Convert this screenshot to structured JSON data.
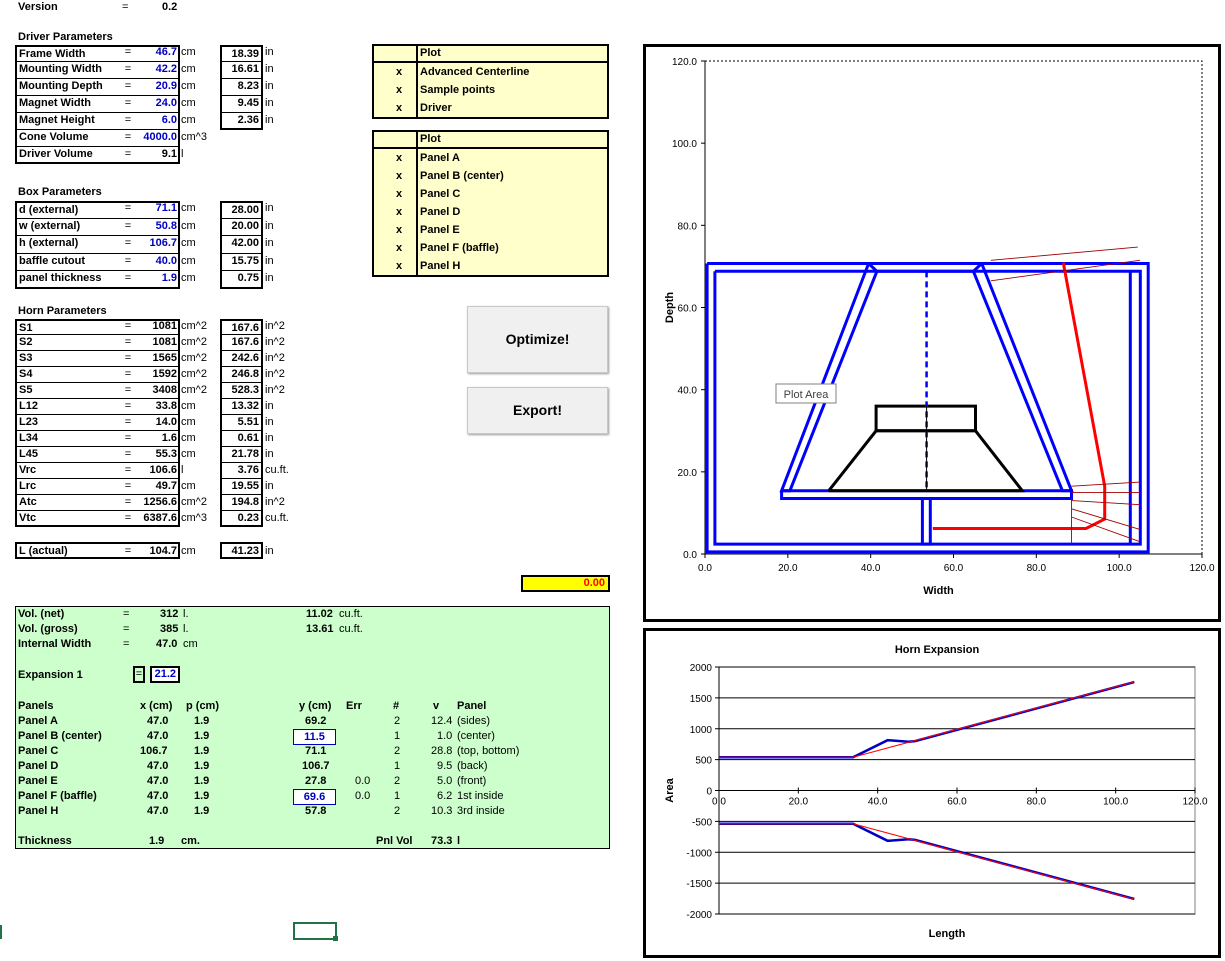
{
  "version": {
    "label": "Version",
    "eq": "=",
    "value": "0.2"
  },
  "driver": {
    "title": "Driver Parameters",
    "rows": [
      {
        "name": "Frame Width",
        "value": "46.7",
        "unit": "cm",
        "conv": "18.39",
        "cunit": "in",
        "input": true
      },
      {
        "name": "Mounting Width",
        "value": "42.2",
        "unit": "cm",
        "conv": "16.61",
        "cunit": "in",
        "input": true
      },
      {
        "name": "Mounting Depth",
        "value": "20.9",
        "unit": "cm",
        "conv": "8.23",
        "cunit": "in",
        "input": true
      },
      {
        "name": "Magnet Width",
        "value": "24.0",
        "unit": "cm",
        "conv": "9.45",
        "cunit": "in",
        "input": true
      },
      {
        "name": "Magnet Height",
        "value": "6.0",
        "unit": "cm",
        "conv": "2.36",
        "cunit": "in",
        "input": true
      },
      {
        "name": "Cone Volume",
        "value": "4000.0",
        "unit": "cm^3",
        "conv": "",
        "cunit": "",
        "input": true
      },
      {
        "name": "Driver Volume",
        "value": "9.1",
        "unit": "l",
        "conv": "",
        "cunit": "",
        "input": false
      }
    ]
  },
  "box": {
    "title": "Box Parameters",
    "rows": [
      {
        "name": "d (external)",
        "value": "71.1",
        "unit": "cm",
        "conv": "28.00",
        "cunit": "in",
        "input": true
      },
      {
        "name": "w (external)",
        "value": "50.8",
        "unit": "cm",
        "conv": "20.00",
        "cunit": "in",
        "input": true
      },
      {
        "name": "h (external)",
        "value": "106.7",
        "unit": "cm",
        "conv": "42.00",
        "cunit": "in",
        "input": true
      },
      {
        "name": "baffle cutout",
        "value": "40.0",
        "unit": "cm",
        "conv": "15.75",
        "cunit": "in",
        "input": true
      },
      {
        "name": "panel thickness",
        "value": "1.9",
        "unit": "cm",
        "conv": "0.75",
        "cunit": "in",
        "input": true
      }
    ]
  },
  "horn": {
    "title": "Horn Parameters",
    "rows": [
      {
        "name": "S1",
        "value": "1081",
        "unit": "cm^2",
        "conv": "167.6",
        "cunit": "in^2",
        "input": false
      },
      {
        "name": "S2",
        "value": "1081",
        "unit": "cm^2",
        "conv": "167.6",
        "cunit": "in^2",
        "input": false
      },
      {
        "name": "S3",
        "value": "1565",
        "unit": "cm^2",
        "conv": "242.6",
        "cunit": "in^2",
        "input": false
      },
      {
        "name": "S4",
        "value": "1592",
        "unit": "cm^2",
        "conv": "246.8",
        "cunit": "in^2",
        "input": false
      },
      {
        "name": "S5",
        "value": "3408",
        "unit": "cm^2",
        "conv": "528.3",
        "cunit": "in^2",
        "input": false
      },
      {
        "name": "L12",
        "value": "33.8",
        "unit": "cm",
        "conv": "13.32",
        "cunit": "in",
        "input": false
      },
      {
        "name": "L23",
        "value": "14.0",
        "unit": "cm",
        "conv": "5.51",
        "cunit": "in",
        "input": false
      },
      {
        "name": "L34",
        "value": "1.6",
        "unit": "cm",
        "conv": "0.61",
        "cunit": "in",
        "input": false
      },
      {
        "name": "L45",
        "value": "55.3",
        "unit": "cm",
        "conv": "21.78",
        "cunit": "in",
        "input": false
      },
      {
        "name": "Vrc",
        "value": "106.6",
        "unit": "l",
        "conv": "3.76",
        "cunit": "cu.ft.",
        "input": false
      },
      {
        "name": "Lrc",
        "value": "49.7",
        "unit": "cm",
        "conv": "19.55",
        "cunit": "in",
        "input": false
      },
      {
        "name": "Atc",
        "value": "1256.6",
        "unit": "cm^2",
        "conv": "194.8",
        "cunit": "in^2",
        "input": false
      },
      {
        "name": "Vtc",
        "value": "6387.6",
        "unit": "cm^3",
        "conv": "0.23",
        "cunit": "cu.ft.",
        "input": false
      }
    ],
    "actual": {
      "name": "L (actual)",
      "value": "104.7",
      "unit": "cm",
      "conv": "41.23",
      "cunit": "in"
    }
  },
  "eq": "=",
  "yellow_cell": "0.00",
  "plot1": {
    "header": "Plot",
    "items": [
      {
        "x": "x",
        "label": "Advanced Centerline"
      },
      {
        "x": "x",
        "label": "Sample points"
      },
      {
        "x": "x",
        "label": "Driver"
      }
    ]
  },
  "plot2": {
    "header": "Plot",
    "items": [
      {
        "x": "x",
        "label": "Panel A"
      },
      {
        "x": "x",
        "label": "Panel B (center)"
      },
      {
        "x": "x",
        "label": "Panel C"
      },
      {
        "x": "x",
        "label": "Panel D"
      },
      {
        "x": "x",
        "label": "Panel E"
      },
      {
        "x": "x",
        "label": "Panel F (baffle)"
      },
      {
        "x": "x",
        "label": "Panel H"
      }
    ]
  },
  "buttons": {
    "optimize": "Optimize!",
    "export": "Export!"
  },
  "summary": {
    "vol_net": {
      "label": "Vol. (net)",
      "v1": "312",
      "u1": "l.",
      "v2": "11.02",
      "u2": "cu.ft."
    },
    "vol_gross": {
      "label": "Vol. (gross)",
      "v1": "385",
      "u1": "l.",
      "v2": "13.61",
      "u2": "cu.ft."
    },
    "internal_width": {
      "label": "Internal Width",
      "v1": "47.0",
      "u1": "cm"
    },
    "expansion": {
      "label": "Expansion 1",
      "value": "21.2"
    },
    "headers": {
      "panels": "Panels",
      "x": "x (cm)",
      "p": "p (cm)",
      "y": "y (cm)",
      "err": "Err",
      "n": "#",
      "v": "v",
      "panel": "Panel"
    },
    "panels": [
      {
        "name": "Panel A",
        "x": "47.0",
        "p": "1.9",
        "y": "69.2",
        "err": "",
        "n": "2",
        "v": "12.4",
        "desc": "(sides)",
        "boxed": false
      },
      {
        "name": "Panel B (center)",
        "x": "47.0",
        "p": "1.9",
        "y": "11.5",
        "err": "",
        "n": "1",
        "v": "1.0",
        "desc": "(center)",
        "boxed": true
      },
      {
        "name": "Panel C",
        "x": "106.7",
        "p": "1.9",
        "y": "71.1",
        "err": "",
        "n": "2",
        "v": "28.8",
        "desc": "(top, bottom)",
        "boxed": false
      },
      {
        "name": "Panel D",
        "x": "47.0",
        "p": "1.9",
        "y": "106.7",
        "err": "",
        "n": "1",
        "v": "9.5",
        "desc": "(back)",
        "boxed": false
      },
      {
        "name": "Panel E",
        "x": "47.0",
        "p": "1.9",
        "y": "27.8",
        "err": "0.0",
        "n": "2",
        "v": "5.0",
        "desc": "(front)",
        "boxed": false
      },
      {
        "name": "Panel F (baffle)",
        "x": "47.0",
        "p": "1.9",
        "y": "69.6",
        "err": "0.0",
        "n": "1",
        "v": "6.2",
        "desc": "1st inside",
        "boxed": true
      },
      {
        "name": "Panel H",
        "x": "47.0",
        "p": "1.9",
        "y": "57.8",
        "err": "",
        "n": "2",
        "v": "10.3",
        "desc": "3rd inside",
        "boxed": false
      }
    ],
    "thickness": {
      "label": "Thickness",
      "value": "1.9",
      "unit": "cm.",
      "pnl_label": "Pnl Vol",
      "pnl_value": "73.3",
      "pnl_unit": "l"
    }
  },
  "chart_data": [
    {
      "type": "scatter",
      "title": "",
      "xlabel": "Width",
      "ylabel": "Depth",
      "xlim": [
        0,
        120
      ],
      "ylim": [
        0,
        120
      ],
      "xticks": [
        "0.0",
        "20.0",
        "40.0",
        "60.0",
        "80.0",
        "100.0",
        "120.0"
      ],
      "yticks": [
        "0.0",
        "20.0",
        "40.0",
        "60.0",
        "80.0",
        "100.0",
        "120.0"
      ],
      "tooltip": "Plot Area",
      "colors": {
        "panels": "#0000ff",
        "driver": "#000000",
        "centerline": "#ff0000",
        "samples": "#a00000"
      },
      "series": [
        {
          "id": "box-outer",
          "color": "#0000ff",
          "points": [
            [
              0.5,
              70.7
            ],
            [
              107,
              70.7
            ],
            [
              107,
              0.5
            ],
            [
              0.5,
              0.5
            ],
            [
              0.5,
              70.7
            ]
          ]
        },
        {
          "id": "box-inner",
          "color": "#0000ff",
          "points": [
            [
              2.4,
              68.8
            ],
            [
              105.1,
              68.8
            ],
            [
              105.1,
              2.4
            ],
            [
              2.4,
              2.4
            ],
            [
              2.4,
              68.8
            ]
          ]
        },
        {
          "id": "back-wall",
          "color": "#0000ff",
          "points": [
            [
              102.7,
              68.8
            ],
            [
              102.7,
              2.4
            ]
          ]
        },
        {
          "id": "baffle",
          "color": "#0000ff",
          "points": [
            [
              18.5,
              15.4
            ],
            [
              88.5,
              15.4
            ],
            [
              88.5,
              13.5
            ],
            [
              18.5,
              13.5
            ],
            [
              18.5,
              15.4
            ]
          ]
        },
        {
          "id": "horn-left",
          "color": "#0000ff",
          "points": [
            [
              39.5,
              70.7
            ],
            [
              18.5,
              15.4
            ],
            [
              20.5,
              15.4
            ],
            [
              41.5,
              68.8
            ]
          ]
        },
        {
          "id": "horn-right",
          "color": "#0000ff",
          "points": [
            [
              66.8,
              70.7
            ],
            [
              88.5,
              15.4
            ],
            [
              86.3,
              15.4
            ],
            [
              64.8,
              68.8
            ]
          ]
        },
        {
          "id": "horn-top",
          "color": "#0000ff",
          "points": [
            [
              39.5,
              70.7
            ],
            [
              66.8,
              70.7
            ],
            [
              64.8,
              68.8
            ],
            [
              41.5,
              68.8
            ],
            [
              39.5,
              70.7
            ]
          ]
        },
        {
          "id": "center-panel",
          "color": "#0000ff",
          "points": [
            [
              52.5,
              13.5
            ],
            [
              52.5,
              2.4
            ],
            [
              54.4,
              2.4
            ],
            [
              54.4,
              13.5
            ]
          ]
        },
        {
          "id": "driver-magnet",
          "color": "#000000",
          "points": [
            [
              41.3,
              30
            ],
            [
              65.3,
              30
            ],
            [
              65.3,
              36
            ],
            [
              41.3,
              36
            ],
            [
              41.3,
              30
            ]
          ]
        },
        {
          "id": "driver-frame",
          "color": "#000000",
          "points": [
            [
              29.9,
              15.4
            ],
            [
              76.6,
              15.4
            ],
            [
              65.3,
              30
            ],
            [
              41.3,
              30
            ],
            [
              29.9,
              15.4
            ]
          ]
        },
        {
          "id": "centerline",
          "color": "#ff0000",
          "points": [
            [
              55,
              6.2
            ],
            [
              92,
              6.2
            ],
            [
              96.5,
              8.5
            ],
            [
              96.5,
              16.5
            ],
            [
              86.5,
              70.9
            ]
          ]
        },
        {
          "id": "sample-top-1",
          "color": "#a00000",
          "points": [
            [
              69,
              71.5
            ],
            [
              104.5,
              74.7
            ]
          ]
        },
        {
          "id": "sample-top-2",
          "color": "#a00000",
          "points": [
            [
              69,
              66.5
            ],
            [
              105,
              71.5
            ]
          ]
        },
        {
          "id": "sample-right-1",
          "color": "#a00000",
          "points": [
            [
              88.5,
              16.5
            ],
            [
              105,
              17.5
            ]
          ]
        },
        {
          "id": "sample-right-2",
          "color": "#a00000",
          "points": [
            [
              88.5,
              15
            ],
            [
              105,
              15
            ]
          ]
        },
        {
          "id": "sample-right-3",
          "color": "#a00000",
          "points": [
            [
              88.5,
              13
            ],
            [
              105,
              12
            ]
          ]
        },
        {
          "id": "sample-right-4",
          "color": "#a00000",
          "points": [
            [
              88.5,
              11
            ],
            [
              105,
              6
            ]
          ]
        },
        {
          "id": "sample-right-5",
          "color": "#a00000",
          "points": [
            [
              88.5,
              9
            ],
            [
              105,
              3
            ]
          ]
        },
        {
          "id": "sample-bottom",
          "color": "#a00000",
          "points": [
            [
              88.5,
              13.5
            ],
            [
              88.5,
              2.5
            ]
          ]
        }
      ]
    },
    {
      "type": "line",
      "title": "Horn Expansion",
      "xlabel": "Length",
      "ylabel": "Area",
      "xlim": [
        0,
        120
      ],
      "ylim": [
        -2000,
        2000
      ],
      "xticks": [
        "0.0",
        "20.0",
        "40.0",
        "60.0",
        "80.0",
        "100.0",
        "120.0"
      ],
      "yticks": [
        "2000",
        "1500",
        "1000",
        "500",
        "0",
        "-500",
        "-1000",
        "-1500",
        "-2000"
      ],
      "series": [
        {
          "id": "area-upper",
          "color": "#0000c0",
          "points": [
            [
              0,
              540
            ],
            [
              33.8,
              540
            ],
            [
              42.5,
              815
            ],
            [
              47.8,
              790
            ],
            [
              49.4,
              800
            ],
            [
              104.7,
              1755
            ]
          ]
        },
        {
          "id": "area-lower",
          "color": "#0000c0",
          "points": [
            [
              0,
              -540
            ],
            [
              33.8,
              -540
            ],
            [
              42.5,
              -815
            ],
            [
              47.8,
              -790
            ],
            [
              49.4,
              -800
            ],
            [
              104.7,
              -1755
            ]
          ]
        },
        {
          "id": "fit-upper",
          "color": "#ff0000",
          "points": [
            [
              0,
              540
            ],
            [
              33.8,
              540
            ],
            [
              104.7,
              1760
            ]
          ]
        },
        {
          "id": "fit-lower",
          "color": "#ff0000",
          "points": [
            [
              0,
              -540
            ],
            [
              33.8,
              -540
            ],
            [
              104.7,
              -1760
            ]
          ]
        }
      ]
    }
  ]
}
